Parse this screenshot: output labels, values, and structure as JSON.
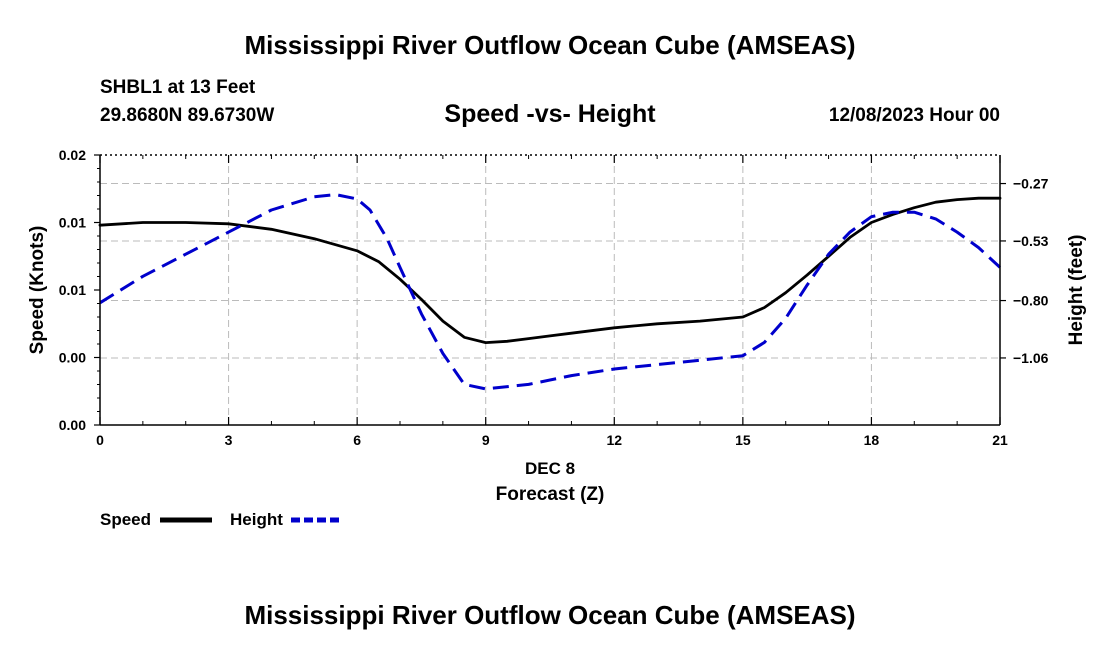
{
  "header": {
    "title": "Mississippi River Outflow Ocean Cube (AMSEAS)",
    "station": "SHBL1 at 13 Feet",
    "coordinates": "29.8680N  89.6730W",
    "chart_title": "Speed -vs- Height",
    "date": "12/08/2023 Hour 00"
  },
  "footer": {
    "title": "Mississippi River Outflow Ocean Cube (AMSEAS)"
  },
  "colors": {
    "speed": "#000000",
    "height": "#0000cc",
    "grid": "#bbbbbb"
  },
  "chart_data": {
    "type": "line",
    "title": "Speed -vs- Height",
    "xlabel_date": "DEC 8",
    "xlabel": "Forecast (Z)",
    "ylabel_left": "Speed (Knots)",
    "ylabel_right": "Height (feet)",
    "xlim": [
      0,
      21
    ],
    "x_ticks": [
      0,
      3,
      6,
      9,
      12,
      15,
      18,
      21
    ],
    "x_tick_labels": [
      "0",
      "3",
      "6",
      "9",
      "12",
      "15",
      "18",
      "21"
    ],
    "ylim_left": [
      0,
      0.02
    ],
    "y_left_ticks": [
      0,
      0.005,
      0.01,
      0.015,
      0.02
    ],
    "y_left_tick_labels": [
      "0.00",
      "0.00",
      "0.01",
      "0.01",
      "0.02"
    ],
    "ylim_right": [
      -1.3637,
      -0.1407
    ],
    "y_right_ticks": [
      -1.06,
      -0.8,
      -0.53,
      -0.27
    ],
    "y_right_tick_labels": [
      "−1.06",
      "−0.80",
      "−0.53",
      "−0.27"
    ],
    "grid": true,
    "legend_position": "bottom-left",
    "series": [
      {
        "name": "Speed",
        "axis": "left",
        "style": "solid",
        "x": [
          0,
          1,
          2,
          3,
          4,
          5,
          6,
          6.5,
          7,
          7.5,
          8,
          8.5,
          9,
          9.5,
          10,
          10.5,
          11,
          12,
          13,
          14,
          15,
          15.5,
          16,
          16.5,
          17,
          17.5,
          18,
          18.5,
          19,
          19.5,
          20,
          20.5,
          21
        ],
        "values": [
          0.0148,
          0.015,
          0.015,
          0.0149,
          0.0145,
          0.0138,
          0.0129,
          0.0121,
          0.0108,
          0.0093,
          0.0077,
          0.0065,
          0.0061,
          0.0062,
          0.0064,
          0.0066,
          0.0068,
          0.0072,
          0.0075,
          0.0077,
          0.008,
          0.0087,
          0.0098,
          0.0111,
          0.0125,
          0.0139,
          0.015,
          0.0156,
          0.0161,
          0.0165,
          0.0167,
          0.0168,
          0.0168
        ]
      },
      {
        "name": "Height",
        "axis": "right",
        "style": "dashed",
        "x": [
          0,
          1,
          2,
          3,
          4,
          5,
          5.5,
          6,
          6.3,
          6.7,
          7,
          7.5,
          8,
          8.5,
          9,
          10,
          11,
          12,
          13,
          14,
          15,
          15.5,
          16,
          16.5,
          17,
          17.5,
          18,
          18.5,
          19,
          19.5,
          20,
          20.5,
          21
        ],
        "values": [
          -0.81,
          -0.69,
          -0.59,
          -0.49,
          -0.39,
          -0.33,
          -0.32,
          -0.34,
          -0.39,
          -0.52,
          -0.65,
          -0.86,
          -1.04,
          -1.18,
          -1.2,
          -1.18,
          -1.14,
          -1.11,
          -1.09,
          -1.07,
          -1.05,
          -0.99,
          -0.88,
          -0.73,
          -0.59,
          -0.49,
          -0.42,
          -0.4,
          -0.4,
          -0.43,
          -0.49,
          -0.56,
          -0.65
        ]
      }
    ]
  }
}
